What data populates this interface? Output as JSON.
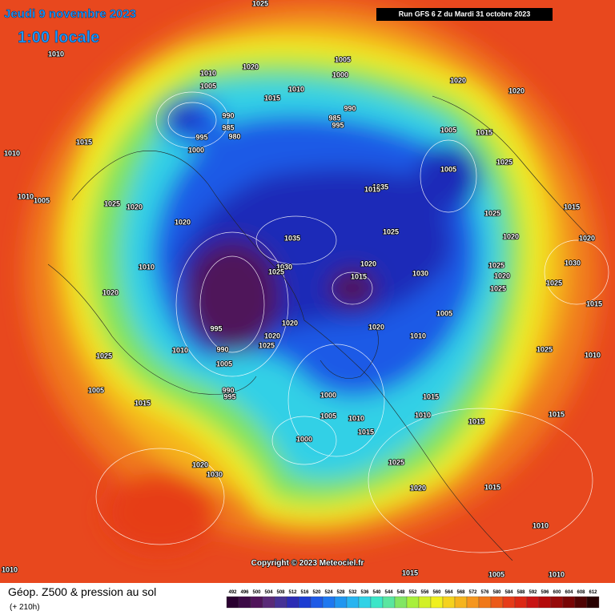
{
  "map": {
    "date": "Jeudi 9 novembre 2023",
    "time": "1:00 locale",
    "run": "Run GFS 6 Z du Mardi 31 octobre 2023",
    "copyright": "Copyright © 2023 Meteociel.fr",
    "product": "Géop. Z500 & pression au sol",
    "lead": "(+ 210h)",
    "pressure_labels": [
      1025,
      1010,
      1020,
      1005,
      1000,
      1010,
      1015,
      1010,
      1005,
      990,
      985,
      995,
      990,
      985,
      980,
      995,
      1000,
      1015,
      1010,
      1010,
      1005,
      1025,
      1020,
      1020,
      1035,
      1030,
      1025,
      1020,
      1015,
      1030,
      1005,
      1015,
      1005,
      1025,
      1035,
      1015,
      1015,
      1020,
      1020,
      1030,
      1025,
      1010,
      1020,
      1020,
      1020,
      1025,
      995,
      990,
      1005,
      1010,
      1025,
      1005,
      1015,
      990,
      995,
      1000,
      1005,
      1010,
      1015,
      1010,
      1015,
      1015,
      1010,
      1005,
      1020,
      1025,
      1010,
      1015,
      1000,
      1025,
      1020,
      1030,
      1020,
      1015,
      1010,
      1010,
      1015,
      1005,
      1010,
      1020,
      1020,
      1025,
      1025,
      1025,
      1020,
      1025,
      1015
    ],
    "scale": {
      "values": [
        492,
        496,
        500,
        504,
        508,
        512,
        516,
        520,
        524,
        528,
        532,
        536,
        540,
        544,
        548,
        552,
        556,
        560,
        564,
        568,
        572,
        576,
        580,
        584,
        588,
        592,
        596,
        600,
        604,
        608,
        612
      ],
      "colors": [
        "#2a0030",
        "#3c0a46",
        "#50145a",
        "#5a2a78",
        "#463296",
        "#2c2cb4",
        "#1c3cd2",
        "#1e5ae6",
        "#1e78f0",
        "#2096f0",
        "#28b4f0",
        "#30d2e6",
        "#3ce6c8",
        "#5ae6a0",
        "#82e664",
        "#a8f03c",
        "#d2f028",
        "#f0f01e",
        "#f5d21e",
        "#f5b41e",
        "#f5961e",
        "#f07819",
        "#eb5a19",
        "#e63c19",
        "#dc2814",
        "#c81414",
        "#b40a0a",
        "#960a0a",
        "#780505",
        "#500303",
        "#280000"
      ]
    }
  }
}
